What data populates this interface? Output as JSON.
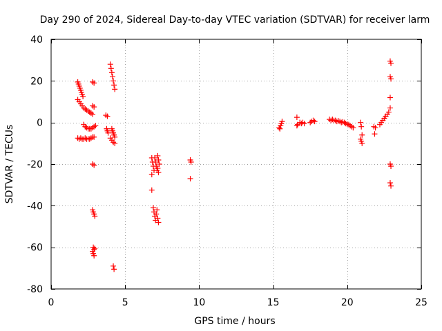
{
  "chart_data": {
    "type": "scatter",
    "title": "Day 290 of 2024, Sidereal Day-to-day VTEC variation (SDTVAR) for receiver larm",
    "xlabel": "GPS time / hours",
    "ylabel": "SDTVAR / TECUs",
    "xlim": [
      0,
      25
    ],
    "ylim": [
      -80,
      40
    ],
    "xticks": [
      0,
      5,
      10,
      15,
      20,
      25
    ],
    "yticks": [
      -80,
      -60,
      -40,
      -20,
      0,
      20,
      40
    ],
    "grid": true,
    "marker": "+",
    "color": "#ff0000",
    "series": [
      {
        "name": "SDTVAR",
        "points": [
          [
            1.8,
            19.5
          ],
          [
            1.85,
            18.5
          ],
          [
            1.9,
            17.5
          ],
          [
            1.95,
            16.5
          ],
          [
            2.0,
            15.5
          ],
          [
            2.05,
            14.5
          ],
          [
            2.1,
            13.5
          ],
          [
            2.15,
            12.5
          ],
          [
            1.8,
            11.0
          ],
          [
            1.9,
            10.0
          ],
          [
            2.0,
            9.0
          ],
          [
            2.1,
            8.0
          ],
          [
            2.2,
            7.0
          ],
          [
            2.3,
            6.5
          ],
          [
            2.4,
            6.0
          ],
          [
            2.5,
            5.5
          ],
          [
            2.6,
            5.0
          ],
          [
            2.7,
            4.5
          ],
          [
            2.8,
            4.0
          ],
          [
            2.2,
            -1.0
          ],
          [
            2.3,
            -2.0
          ],
          [
            2.4,
            -2.5
          ],
          [
            2.5,
            -3.0
          ],
          [
            2.6,
            -3.0
          ],
          [
            2.7,
            -3.0
          ],
          [
            2.8,
            -2.5
          ],
          [
            2.9,
            -2.0
          ],
          [
            3.0,
            -1.5
          ],
          [
            1.8,
            -7.5
          ],
          [
            1.9,
            -8.0
          ],
          [
            2.0,
            -7.5
          ],
          [
            2.1,
            -8.0
          ],
          [
            2.2,
            -8.0
          ],
          [
            2.3,
            -7.5
          ],
          [
            2.4,
            -8.0
          ],
          [
            2.5,
            -7.8
          ],
          [
            2.6,
            -8.0
          ],
          [
            2.7,
            -7.5
          ],
          [
            2.8,
            -7.0
          ],
          [
            2.9,
            -7.0
          ],
          [
            2.8,
            19.5
          ],
          [
            2.9,
            19.0
          ],
          [
            2.8,
            8.0
          ],
          [
            2.9,
            7.5
          ],
          [
            2.8,
            -20.0
          ],
          [
            2.9,
            -20.5
          ],
          [
            2.8,
            -42.0
          ],
          [
            2.85,
            -43.0
          ],
          [
            2.9,
            -44.0
          ],
          [
            2.95,
            -45.0
          ],
          [
            2.85,
            -60.0
          ],
          [
            2.9,
            -61.0
          ],
          [
            2.95,
            -60.5
          ],
          [
            2.8,
            -62.0
          ],
          [
            2.85,
            -63.0
          ],
          [
            2.9,
            -64.0
          ],
          [
            3.7,
            3.5
          ],
          [
            3.8,
            3.0
          ],
          [
            3.75,
            -3.0
          ],
          [
            3.8,
            -4.0
          ],
          [
            3.85,
            -5.0
          ],
          [
            4.0,
            28.0
          ],
          [
            4.05,
            26.0
          ],
          [
            4.1,
            24.0
          ],
          [
            4.15,
            22.0
          ],
          [
            4.2,
            20.0
          ],
          [
            4.25,
            18.0
          ],
          [
            4.3,
            16.0
          ],
          [
            4.1,
            -3.0
          ],
          [
            4.15,
            -4.0
          ],
          [
            4.2,
            -5.0
          ],
          [
            4.25,
            -6.0
          ],
          [
            4.3,
            -7.0
          ],
          [
            4.0,
            -7.5
          ],
          [
            4.1,
            -8.5
          ],
          [
            4.2,
            -9.5
          ],
          [
            4.3,
            -10.0
          ],
          [
            4.2,
            -69.0
          ],
          [
            4.25,
            -70.5
          ],
          [
            6.8,
            -17.0
          ],
          [
            6.85,
            -19.0
          ],
          [
            6.9,
            -21.0
          ],
          [
            6.95,
            -23.0
          ],
          [
            6.8,
            -25.0
          ],
          [
            7.0,
            -17.0
          ],
          [
            7.05,
            -19.0
          ],
          [
            7.1,
            -21.0
          ],
          [
            7.15,
            -23.0
          ],
          [
            7.2,
            -16.0
          ],
          [
            7.25,
            -18.0
          ],
          [
            7.3,
            -20.0
          ],
          [
            7.2,
            -22.0
          ],
          [
            7.25,
            -24.0
          ],
          [
            6.8,
            -32.5
          ],
          [
            6.9,
            -41.0
          ],
          [
            6.95,
            -43.0
          ],
          [
            7.0,
            -45.0
          ],
          [
            7.05,
            -47.0
          ],
          [
            7.1,
            -44.0
          ],
          [
            7.15,
            -42.0
          ],
          [
            7.2,
            -46.0
          ],
          [
            7.25,
            -48.0
          ],
          [
            9.4,
            -18.0
          ],
          [
            9.45,
            -19.0
          ],
          [
            9.4,
            -27.0
          ],
          [
            15.4,
            -2.5
          ],
          [
            15.5,
            -1.5
          ],
          [
            15.55,
            -0.5
          ],
          [
            15.6,
            0.5
          ],
          [
            15.45,
            -3.0
          ],
          [
            16.6,
            2.5
          ],
          [
            16.65,
            -1.0
          ],
          [
            16.6,
            -1.5
          ],
          [
            16.8,
            0.0
          ],
          [
            16.9,
            -0.5
          ],
          [
            17.0,
            0.0
          ],
          [
            17.1,
            -0.5
          ],
          [
            17.5,
            0.0
          ],
          [
            17.6,
            0.5
          ],
          [
            17.7,
            1.0
          ],
          [
            17.8,
            0.5
          ],
          [
            18.8,
            1.5
          ],
          [
            18.9,
            1.0
          ],
          [
            19.0,
            1.5
          ],
          [
            19.1,
            1.0
          ],
          [
            19.2,
            1.0
          ],
          [
            19.3,
            0.5
          ],
          [
            19.4,
            0.8
          ],
          [
            19.5,
            0.5
          ],
          [
            19.6,
            0.0
          ],
          [
            19.7,
            0.3
          ],
          [
            19.8,
            0.0
          ],
          [
            19.9,
            -0.5
          ],
          [
            20.0,
            -0.8
          ],
          [
            20.1,
            -1.0
          ],
          [
            20.2,
            -1.5
          ],
          [
            20.3,
            -2.0
          ],
          [
            20.4,
            -2.5
          ],
          [
            20.9,
            0.0
          ],
          [
            20.95,
            -2.0
          ],
          [
            21.0,
            -6.0
          ],
          [
            20.9,
            -8.0
          ],
          [
            20.95,
            -9.0
          ],
          [
            21.0,
            -10.0
          ],
          [
            21.8,
            -2.0
          ],
          [
            21.9,
            -2.5
          ],
          [
            21.85,
            -5.5
          ],
          [
            22.2,
            -1.0
          ],
          [
            22.3,
            0.0
          ],
          [
            22.4,
            1.0
          ],
          [
            22.5,
            2.0
          ],
          [
            22.6,
            3.0
          ],
          [
            22.7,
            4.0
          ],
          [
            22.8,
            5.0
          ],
          [
            22.9,
            7.0
          ],
          [
            22.9,
            29.5
          ],
          [
            22.95,
            28.5
          ],
          [
            22.9,
            22.0
          ],
          [
            22.95,
            21.0
          ],
          [
            22.9,
            12.0
          ],
          [
            22.9,
            -20.0
          ],
          [
            22.95,
            -21.0
          ],
          [
            22.9,
            -29.0
          ],
          [
            22.95,
            -30.5
          ]
        ]
      }
    ]
  }
}
